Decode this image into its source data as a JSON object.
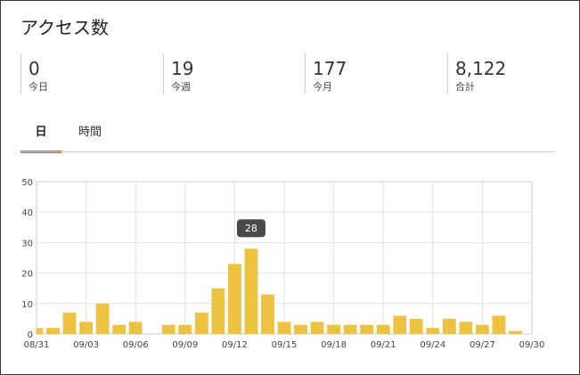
{
  "title": "アクセス数",
  "stats": [
    {
      "value": "0",
      "label": "今日"
    },
    {
      "value": "19",
      "label": "今週"
    },
    {
      "value": "177",
      "label": "今月"
    },
    {
      "value": "8,122",
      "label": "合計"
    }
  ],
  "tabs": [
    {
      "label": "日",
      "active": true
    },
    {
      "label": "時間",
      "active": false
    }
  ],
  "tooltip": {
    "value": "28"
  },
  "colors": {
    "bar": "#edc240",
    "tab_active": "#2f8fd0",
    "tooltip_bg": "#4a4a4a"
  },
  "chart_data": {
    "type": "bar",
    "categories": [
      "08/31",
      "09/01",
      "09/02",
      "09/03",
      "09/04",
      "09/05",
      "09/06",
      "09/07",
      "09/08",
      "09/09",
      "09/10",
      "09/11",
      "09/12",
      "09/13",
      "09/14",
      "09/15",
      "09/16",
      "09/17",
      "09/18",
      "09/19",
      "09/20",
      "09/21",
      "09/22",
      "09/23",
      "09/24",
      "09/25",
      "09/26",
      "09/27",
      "09/28",
      "09/29",
      "09/30"
    ],
    "values": [
      2,
      2,
      7,
      4,
      10,
      3,
      4,
      0,
      3,
      3,
      7,
      15,
      23,
      28,
      13,
      4,
      3,
      4,
      3,
      3,
      3,
      3,
      6,
      5,
      2,
      5,
      4,
      3,
      6,
      1,
      0
    ],
    "xtick_labels": [
      "08/31",
      "09/03",
      "09/06",
      "09/09",
      "09/12",
      "09/15",
      "09/18",
      "09/21",
      "09/24",
      "09/27",
      "09/30"
    ],
    "ytick_labels": [
      "0",
      "10",
      "20",
      "30",
      "40",
      "50"
    ],
    "ylim": [
      0,
      50
    ],
    "grid": true,
    "highlighted": "09/13"
  }
}
